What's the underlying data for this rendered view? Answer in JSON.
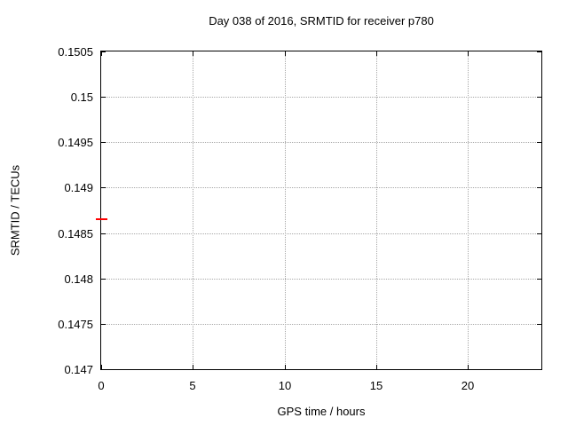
{
  "colors": {
    "background": "#ffffff",
    "foreground": "#000000",
    "gridline": "#a8a8a8",
    "point": "#ff0000"
  },
  "chart_data": {
    "type": "scatter",
    "title": "Day 038 of 2016, SRMTID for receiver p780",
    "xlabel": "GPS time / hours",
    "ylabel": "SRMTID / TECUs",
    "xlim": [
      0,
      24
    ],
    "ylim": [
      0.147,
      0.1505
    ],
    "grid": "dotted",
    "legend": "none",
    "x_ticks": [
      {
        "v": 0,
        "label": "0"
      },
      {
        "v": 5,
        "label": "5"
      },
      {
        "v": 10,
        "label": "10"
      },
      {
        "v": 15,
        "label": "15"
      },
      {
        "v": 20,
        "label": "20"
      }
    ],
    "y_ticks": [
      {
        "v": 0.147,
        "label": "0.147"
      },
      {
        "v": 0.1475,
        "label": "0.1475"
      },
      {
        "v": 0.148,
        "label": "0.148"
      },
      {
        "v": 0.1485,
        "label": "0.1485"
      },
      {
        "v": 0.149,
        "label": "0.149"
      },
      {
        "v": 0.1495,
        "label": "0.1495"
      },
      {
        "v": 0.15,
        "label": "0.15"
      },
      {
        "v": 0.1505,
        "label": "0.1505"
      }
    ],
    "series": [
      {
        "name": "SRMTID",
        "color": "#ff0000",
        "marker": "horizontal-dash",
        "points": [
          {
            "x": 0,
            "y": 0.14865
          }
        ]
      }
    ]
  }
}
